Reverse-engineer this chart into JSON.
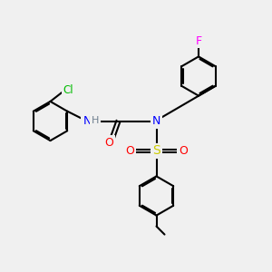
{
  "bg_color": "#f0f0f0",
  "atom_colors": {
    "C": "#000000",
    "H": "#708090",
    "N": "#0000ff",
    "O": "#ff0000",
    "S": "#cccc00",
    "Cl": "#00bb00",
    "F": "#ff00ff"
  },
  "bond_color": "#000000",
  "bond_width": 1.5,
  "font_size": 8.5,
  "fig_width": 3.0,
  "fig_height": 3.0,
  "dpi": 100,
  "xlim": [
    0,
    10
  ],
  "ylim": [
    0,
    10
  ]
}
